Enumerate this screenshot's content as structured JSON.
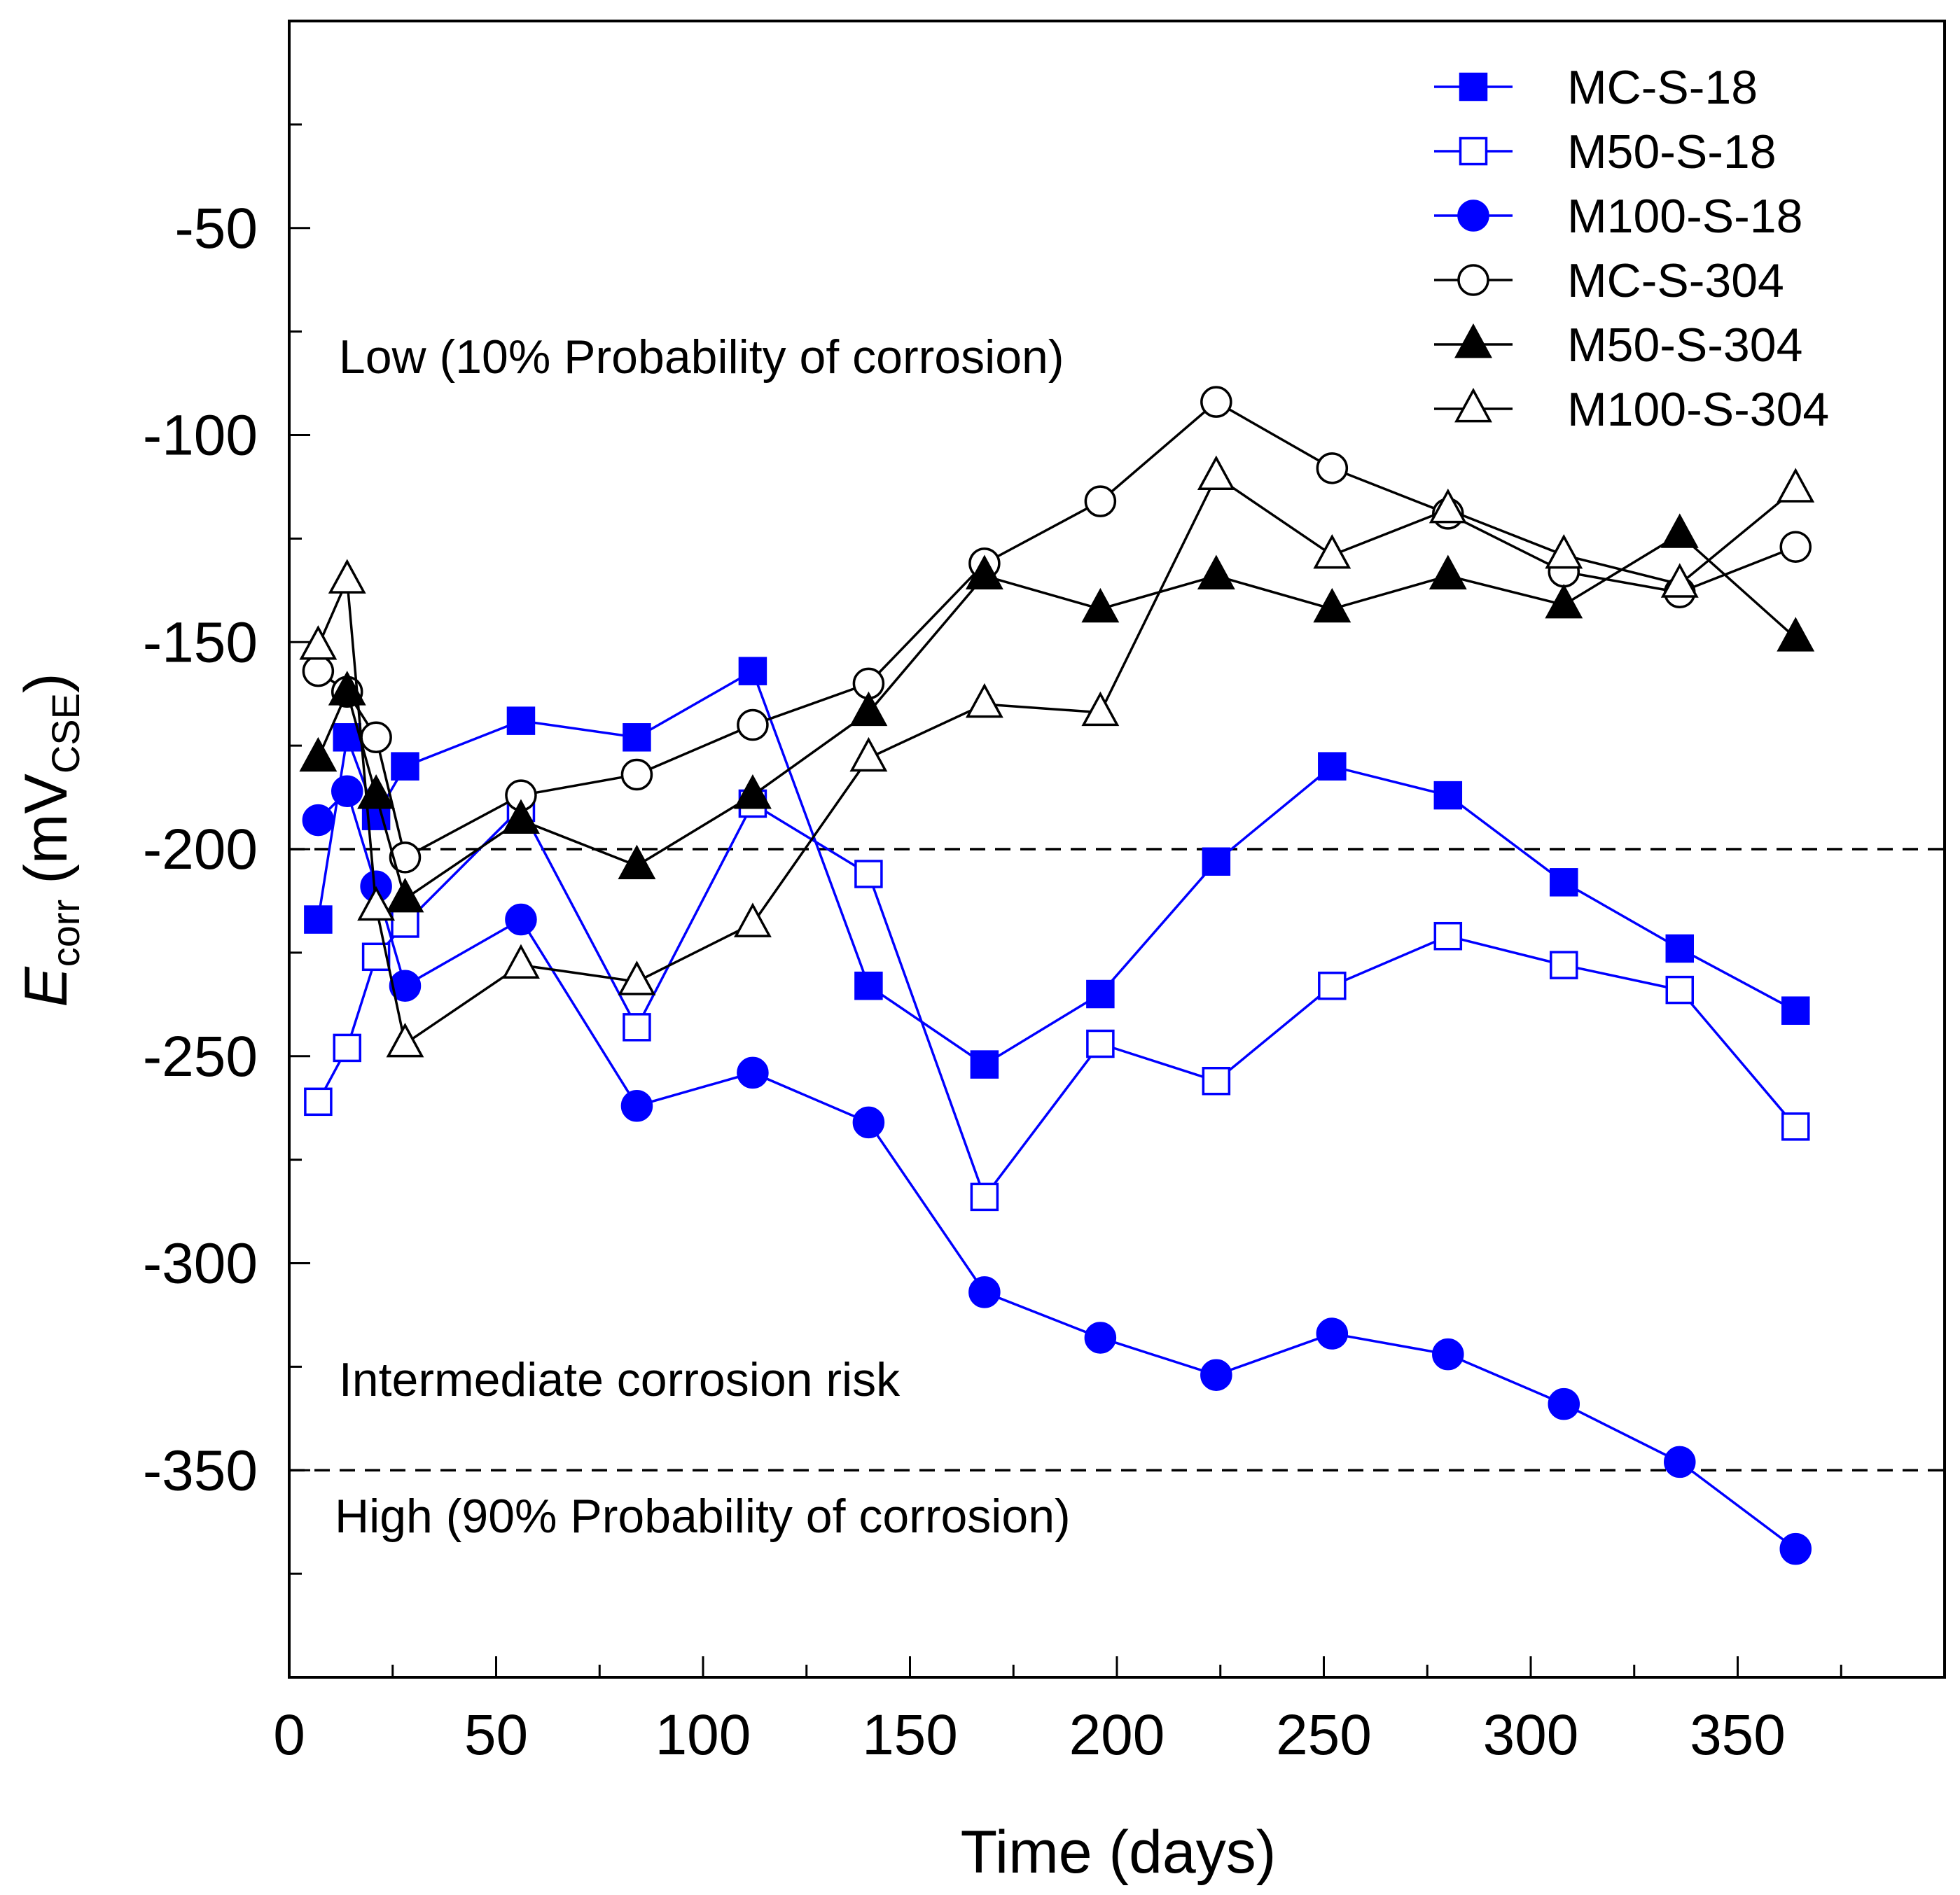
{
  "chart_data": {
    "type": "line",
    "title": "",
    "xlabel": "Time (days)",
    "ylabel": {
      "main": "E",
      "main_sub": "corr",
      "unit_open": "(mV",
      "unit_sub": "CSE",
      "unit_close": ")"
    },
    "xlim": [
      0,
      400
    ],
    "ylim": [
      -400,
      0
    ],
    "x_ticks": [
      0,
      50,
      100,
      150,
      200,
      250,
      300,
      350
    ],
    "y_ticks": [
      -50,
      -100,
      -150,
      -200,
      -250,
      -300,
      -350
    ],
    "grid": false,
    "legend_position": "top-right",
    "reference_lines": [
      {
        "y": -200,
        "style": "dashed"
      },
      {
        "y": -350,
        "style": "dashed"
      }
    ],
    "annotations": [
      {
        "text": "Low (10% Probability of corrosion)",
        "x": 12,
        "y": -85
      },
      {
        "text": "Intermediate corrosion risk",
        "x": 12,
        "y": -332
      },
      {
        "text": "High (90% Probability of corrosion)",
        "x": 11,
        "y": -365
      }
    ],
    "series": [
      {
        "name": "MC-S-18",
        "color": "#0000ff",
        "marker": "square",
        "filled": true,
        "x": [
          7,
          14,
          21,
          28,
          56,
          84,
          112,
          140,
          168,
          196,
          224,
          252,
          280,
          308,
          336,
          364
        ],
        "y": [
          -217,
          -173,
          -192,
          -180,
          -169,
          -173,
          -157,
          -233,
          -252,
          -235,
          -203,
          -180,
          -187,
          -208,
          -224,
          -239
        ]
      },
      {
        "name": "M50-S-18",
        "color": "#0000ff",
        "marker": "square",
        "filled": false,
        "x": [
          7,
          14,
          21,
          28,
          56,
          84,
          112,
          140,
          168,
          196,
          224,
          252,
          280,
          308,
          336,
          364
        ],
        "y": [
          -261,
          -248,
          -226,
          -218,
          -190,
          -243,
          -189,
          -206,
          -284,
          -247,
          -256,
          -233,
          -221,
          -228,
          -234,
          -267
        ]
      },
      {
        "name": "M100-S-18",
        "color": "#0000ff",
        "marker": "circle",
        "filled": true,
        "x": [
          7,
          14,
          21,
          28,
          56,
          84,
          112,
          140,
          168,
          196,
          224,
          252,
          280,
          308,
          336,
          364
        ],
        "y": [
          -193,
          -186,
          -209,
          -233,
          -217,
          -262,
          -254,
          -266,
          -307,
          -318,
          -327,
          -317,
          -322,
          -334,
          -348,
          -369
        ]
      },
      {
        "name": "MC-S-304",
        "color": "#000000",
        "marker": "circle",
        "filled": false,
        "x": [
          7,
          14,
          21,
          28,
          56,
          84,
          112,
          140,
          168,
          196,
          224,
          252,
          280,
          308,
          336,
          364
        ],
        "y": [
          -157,
          -162,
          -173,
          -202,
          -187,
          -182,
          -170,
          -160,
          -131,
          -116,
          -92,
          -108,
          -119,
          -133,
          -138,
          -127
        ]
      },
      {
        "name": "M50-S-304",
        "color": "#000000",
        "marker": "triangle",
        "filled": true,
        "x": [
          7,
          14,
          21,
          28,
          56,
          84,
          112,
          140,
          168,
          196,
          224,
          252,
          280,
          308,
          336,
          364
        ],
        "y": [
          -178,
          -162,
          -187,
          -212,
          -193,
          -204,
          -187,
          -167,
          -134,
          -142,
          -134,
          -142,
          -134,
          -141,
          -124,
          -149
        ]
      },
      {
        "name": "M100-S-304",
        "color": "#000000",
        "marker": "triangle",
        "filled": false,
        "x": [
          7,
          14,
          21,
          28,
          56,
          84,
          112,
          140,
          168,
          196,
          224,
          252,
          280,
          308,
          336,
          364
        ],
        "y": [
          -151,
          -135,
          -214,
          -247,
          -228,
          -232,
          -218,
          -178,
          -165,
          -167,
          -110,
          -129,
          -118,
          -129,
          -136,
          -113
        ]
      }
    ]
  }
}
